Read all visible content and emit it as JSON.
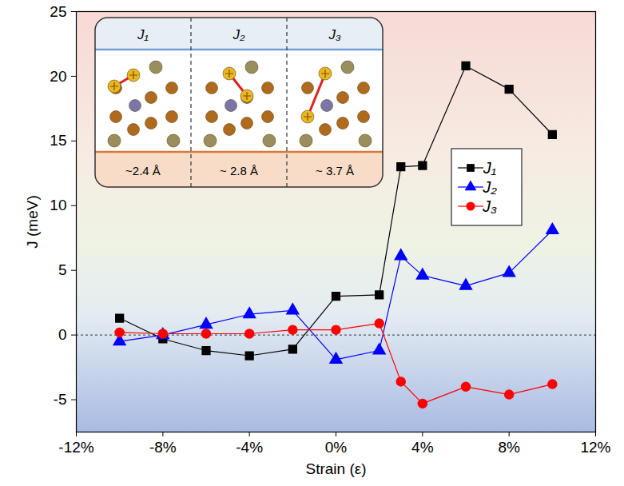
{
  "chart_data": {
    "type": "line",
    "x_label": "Strain (ε)",
    "y_label": "J (meV)",
    "x": [
      -10,
      -8,
      -6,
      -4,
      -2,
      0,
      2,
      3,
      4,
      6,
      8,
      10
    ],
    "xlim": [
      -12,
      12
    ],
    "xticks": [
      {
        "value": -12,
        "label": "-12%"
      },
      {
        "value": -8,
        "label": "-8%"
      },
      {
        "value": -4,
        "label": "-4%"
      },
      {
        "value": 0,
        "label": "0%"
      },
      {
        "value": 4,
        "label": "4%"
      },
      {
        "value": 8,
        "label": "8%"
      },
      {
        "value": 12,
        "label": "12%"
      }
    ],
    "ylim": [
      -7.5,
      25
    ],
    "yticks": [
      -5,
      0,
      5,
      10,
      15,
      20,
      25
    ],
    "legend": "upper right",
    "series": [
      {
        "name": "J₁",
        "color": "#000000",
        "marker": "square",
        "values": [
          1.3,
          -0.3,
          -1.2,
          -1.6,
          -1.1,
          3.0,
          3.1,
          13.0,
          13.1,
          20.8,
          19.0,
          15.5
        ]
      },
      {
        "name": "J₂",
        "color": "#0000ff",
        "marker": "triangle",
        "values": [
          -0.5,
          0.0,
          0.8,
          1.6,
          1.9,
          -1.9,
          -1.2,
          6.1,
          4.6,
          3.8,
          4.8,
          8.1
        ]
      },
      {
        "name": "J₃",
        "color": "#ff0000",
        "marker": "circle",
        "values": [
          0.2,
          0.1,
          0.1,
          0.1,
          0.4,
          0.4,
          0.9,
          -3.6,
          -5.3,
          -4.0,
          -4.6,
          -3.8
        ]
      }
    ],
    "inset": {
      "panels": [
        {
          "label": "J₁",
          "distance": "~2.4 Å"
        },
        {
          "label": "J₂",
          "distance": "~ 2.8 Å"
        },
        {
          "label": "J₃",
          "distance": "~ 3.7 Å"
        }
      ]
    }
  }
}
